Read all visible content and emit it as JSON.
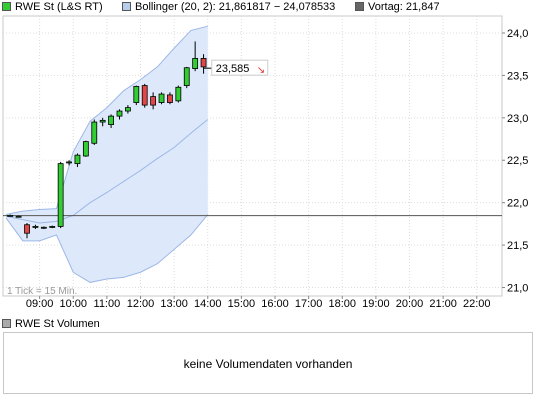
{
  "legend": {
    "series": {
      "label": "RWE St (L&S RT)",
      "color": "#33cc33"
    },
    "bollinger": {
      "label": "Bollinger (20, 2): 21,861817 − 24,078533",
      "color": "#b8cdee"
    },
    "prev_close": {
      "label": "Vortag: 21,847",
      "color": "#666666"
    }
  },
  "chart_data": {
    "type": "candlestick",
    "title": "",
    "tick_note": "1 Tick = 15 Min.",
    "ylim": [
      20.9,
      24.2
    ],
    "y_ticks": [
      "24,0",
      "23,5",
      "23,0",
      "22,5",
      "22,0",
      "21,5",
      "21,0"
    ],
    "y_tick_values": [
      24.0,
      23.5,
      23.0,
      22.5,
      22.0,
      21.5,
      21.0
    ],
    "x_ticks": [
      "09:00",
      "10:00",
      "11:00",
      "12:00",
      "13:00",
      "14:00",
      "15:00",
      "16:00",
      "17:00",
      "18:00",
      "19:00",
      "20:00",
      "21:00",
      "22:00"
    ],
    "x_range_hours": [
      8.0,
      22.75
    ],
    "prev_close": 21.847,
    "last_price_label": "23,585",
    "last_price": 23.585,
    "candles": [
      {
        "t": 8.0,
        "o": 21.85,
        "h": 21.86,
        "l": 21.84,
        "c": 21.85
      },
      {
        "t": 8.25,
        "o": 21.84,
        "h": 21.85,
        "l": 21.83,
        "c": 21.84
      },
      {
        "t": 8.5,
        "o": 21.74,
        "h": 21.76,
        "l": 21.58,
        "c": 21.64
      },
      {
        "t": 8.75,
        "o": 21.71,
        "h": 21.74,
        "l": 21.69,
        "c": 21.72
      },
      {
        "t": 9.0,
        "o": 21.71,
        "h": 21.72,
        "l": 21.69,
        "c": 21.71
      },
      {
        "t": 9.25,
        "o": 21.71,
        "h": 21.73,
        "l": 21.7,
        "c": 21.72
      },
      {
        "t": 9.5,
        "o": 21.72,
        "h": 22.48,
        "l": 21.7,
        "c": 22.46
      },
      {
        "t": 9.75,
        "o": 22.47,
        "h": 22.5,
        "l": 22.44,
        "c": 22.48
      },
      {
        "t": 10.0,
        "o": 22.46,
        "h": 22.58,
        "l": 22.42,
        "c": 22.56
      },
      {
        "t": 10.25,
        "o": 22.55,
        "h": 22.73,
        "l": 22.54,
        "c": 22.72
      },
      {
        "t": 10.5,
        "o": 22.7,
        "h": 22.98,
        "l": 22.68,
        "c": 22.95
      },
      {
        "t": 10.75,
        "o": 22.95,
        "h": 23.0,
        "l": 22.9,
        "c": 22.97
      },
      {
        "t": 11.0,
        "o": 22.92,
        "h": 23.04,
        "l": 22.88,
        "c": 23.02
      },
      {
        "t": 11.25,
        "o": 23.02,
        "h": 23.1,
        "l": 22.98,
        "c": 23.08
      },
      {
        "t": 11.5,
        "o": 23.08,
        "h": 23.15,
        "l": 23.05,
        "c": 23.12
      },
      {
        "t": 11.75,
        "o": 23.18,
        "h": 23.38,
        "l": 23.15,
        "c": 23.37
      },
      {
        "t": 12.0,
        "o": 23.38,
        "h": 23.4,
        "l": 23.12,
        "c": 23.15
      },
      {
        "t": 12.25,
        "o": 23.25,
        "h": 23.3,
        "l": 23.1,
        "c": 23.15
      },
      {
        "t": 12.5,
        "o": 23.18,
        "h": 23.3,
        "l": 23.16,
        "c": 23.28
      },
      {
        "t": 12.75,
        "o": 23.27,
        "h": 23.3,
        "l": 23.16,
        "c": 23.18
      },
      {
        "t": 13.0,
        "o": 23.2,
        "h": 23.38,
        "l": 23.18,
        "c": 23.36
      },
      {
        "t": 13.25,
        "o": 23.38,
        "h": 23.6,
        "l": 23.35,
        "c": 23.59
      },
      {
        "t": 13.5,
        "o": 23.58,
        "h": 23.9,
        "l": 23.55,
        "c": 23.7
      },
      {
        "t": 13.75,
        "o": 23.7,
        "h": 23.75,
        "l": 23.52,
        "c": 23.6
      }
    ],
    "bollinger_upper": [
      {
        "t": 8.0,
        "v": 21.86
      },
      {
        "t": 8.5,
        "v": 21.9
      },
      {
        "t": 9.0,
        "v": 21.92
      },
      {
        "t": 9.5,
        "v": 21.93
      },
      {
        "t": 10.0,
        "v": 22.6
      },
      {
        "t": 10.5,
        "v": 22.96
      },
      {
        "t": 11.0,
        "v": 23.12
      },
      {
        "t": 11.5,
        "v": 23.32
      },
      {
        "t": 12.0,
        "v": 23.45
      },
      {
        "t": 12.5,
        "v": 23.6
      },
      {
        "t": 13.0,
        "v": 23.82
      },
      {
        "t": 13.5,
        "v": 24.03
      },
      {
        "t": 14.0,
        "v": 24.08
      }
    ],
    "bollinger_middle": [
      {
        "t": 8.0,
        "v": 21.84
      },
      {
        "t": 9.0,
        "v": 21.76
      },
      {
        "t": 9.5,
        "v": 21.78
      },
      {
        "t": 10.0,
        "v": 21.85
      },
      {
        "t": 10.5,
        "v": 22.0
      },
      {
        "t": 11.0,
        "v": 22.12
      },
      {
        "t": 11.5,
        "v": 22.25
      },
      {
        "t": 12.0,
        "v": 22.38
      },
      {
        "t": 12.5,
        "v": 22.52
      },
      {
        "t": 13.0,
        "v": 22.65
      },
      {
        "t": 13.5,
        "v": 22.82
      },
      {
        "t": 14.0,
        "v": 22.98
      }
    ],
    "bollinger_lower": [
      {
        "t": 8.0,
        "v": 21.82
      },
      {
        "t": 8.5,
        "v": 21.55
      },
      {
        "t": 9.0,
        "v": 21.55
      },
      {
        "t": 9.5,
        "v": 21.62
      },
      {
        "t": 10.0,
        "v": 21.18
      },
      {
        "t": 10.5,
        "v": 21.06
      },
      {
        "t": 11.0,
        "v": 21.1
      },
      {
        "t": 11.5,
        "v": 21.12
      },
      {
        "t": 12.0,
        "v": 21.18
      },
      {
        "t": 12.5,
        "v": 21.28
      },
      {
        "t": 13.0,
        "v": 21.45
      },
      {
        "t": 13.5,
        "v": 21.62
      },
      {
        "t": 14.0,
        "v": 21.86
      }
    ],
    "up_color": "#33cc33",
    "down_color": "#e04848",
    "band_fill": "#dde9fb",
    "band_line": "#9db7e6"
  },
  "volume": {
    "header": "RWE St Volumen",
    "message": "keine Volumendaten vorhanden",
    "swatch_color": "#aaaaaa"
  }
}
